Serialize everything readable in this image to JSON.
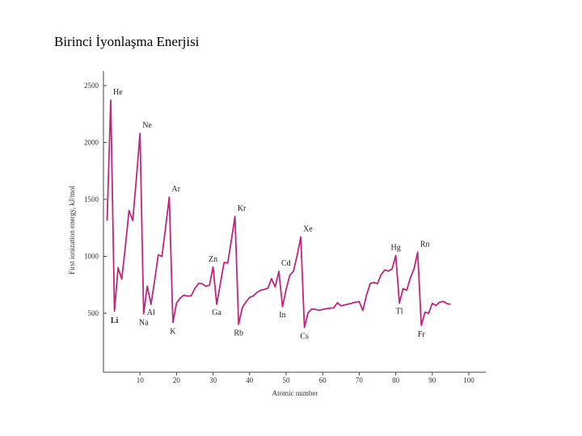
{
  "slide": {
    "title": "Birinci İyonlaşma Enerjisi"
  },
  "chart_data": {
    "type": "line",
    "xlabel": "Atomic number",
    "ylabel": "First ionization energy, kJ/mol",
    "xlim": [
      0,
      106
    ],
    "ylim": [
      0,
      2600
    ],
    "x_ticks": [
      10,
      20,
      30,
      40,
      50,
      60,
      70,
      80,
      90,
      100
    ],
    "y_ticks": [
      500,
      1000,
      1500,
      2000,
      2500
    ],
    "grid": false,
    "line_color": "#c2247a",
    "series": [
      {
        "x": [
          1,
          2,
          3,
          4,
          5,
          6,
          7,
          8,
          9,
          10,
          11,
          12,
          13,
          14,
          15,
          16,
          17,
          18,
          19,
          20,
          21,
          22,
          23,
          24,
          25,
          26,
          27,
          28,
          29,
          30,
          31,
          32,
          33,
          34,
          35,
          36,
          37,
          38,
          39,
          40,
          41,
          42,
          43,
          44,
          45,
          46,
          47,
          48,
          49,
          50,
          51,
          52,
          53,
          54,
          55,
          56,
          57,
          58,
          59,
          60,
          61,
          62,
          63,
          64,
          65,
          66,
          67,
          68,
          69,
          70,
          71,
          72,
          73,
          74,
          75,
          76,
          77,
          78,
          79,
          80,
          81,
          82,
          83,
          84,
          85,
          86,
          87,
          88,
          89,
          90,
          91,
          92,
          93,
          94,
          95
        ],
        "values": [
          1312,
          2372,
          520,
          900,
          801,
          1086,
          1402,
          1314,
          1681,
          2081,
          496,
          738,
          578,
          787,
          1012,
          1000,
          1251,
          1521,
          419,
          590,
          633,
          659,
          651,
          653,
          717,
          762,
          760,
          737,
          746,
          906,
          579,
          762,
          947,
          941,
          1140,
          1351,
          403,
          550,
          600,
          640,
          652,
          684,
          702,
          710,
          720,
          804,
          731,
          868,
          558,
          709,
          834,
          869,
          1008,
          1170,
          376,
          503,
          538,
          534,
          527,
          533,
          540,
          545,
          547,
          593,
          566,
          573,
          581,
          589,
          597,
          603,
          524,
          659,
          761,
          770,
          760,
          840,
          880,
          870,
          890,
          1007,
          589,
          716,
          703,
          812,
          890,
          1037,
          393,
          509,
          499,
          587,
          568,
          598,
          604,
          585,
          578
        ]
      }
    ],
    "annotations": [
      {
        "label": "He",
        "x": 2
      },
      {
        "label": "Ne",
        "x": 10
      },
      {
        "label": "Ar",
        "x": 18
      },
      {
        "label": "Kr",
        "x": 36
      },
      {
        "label": "Xe",
        "x": 54
      },
      {
        "label": "Rn",
        "x": 86
      },
      {
        "label": "Zn",
        "x": 30
      },
      {
        "label": "Cd",
        "x": 48
      },
      {
        "label": "Hg",
        "x": 80
      },
      {
        "label": "Li",
        "x": 3
      },
      {
        "label": "Na",
        "x": 11
      },
      {
        "label": "K",
        "x": 19
      },
      {
        "label": "Rb",
        "x": 37
      },
      {
        "label": "Cs",
        "x": 55
      },
      {
        "label": "Fr",
        "x": 87
      },
      {
        "label": "Al",
        "x": 13
      },
      {
        "label": "Ga",
        "x": 31
      },
      {
        "label": "In",
        "x": 49
      },
      {
        "label": "Tl",
        "x": 81
      }
    ]
  }
}
